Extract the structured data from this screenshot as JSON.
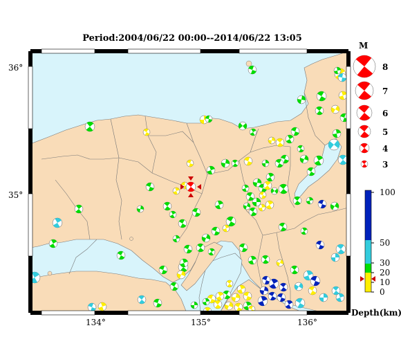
{
  "title": "Period:2004/06/22 00:00--2014/06/22 13:05",
  "axes": {
    "lat_labels": [
      "36°",
      "35°"
    ],
    "lon_labels": [
      "134°",
      "135°",
      "136°"
    ]
  },
  "legend_magnitude": {
    "heading": "M",
    "labels": [
      "8",
      "7",
      "6",
      "5",
      "4",
      "3"
    ]
  },
  "depth_scale": {
    "ticks": [
      "100",
      "50",
      "30",
      "20",
      "10",
      "0"
    ],
    "axis_label": "Depth(km)"
  },
  "colors": {
    "sea": "#d8f4fb",
    "land": "#f9dcb8",
    "main_event": "#ff0000",
    "shallow": "#ffee00",
    "mid": "#00dd00",
    "deep1": "#33ccdd",
    "deep2": "#0022bb"
  },
  "main_event_symbol": "red-triangle-markers",
  "events_description_count": 180
}
